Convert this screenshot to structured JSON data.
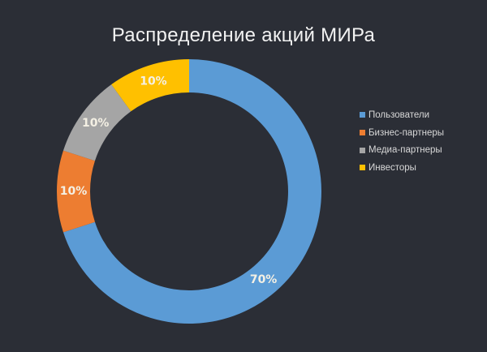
{
  "chart_data": {
    "type": "pie",
    "variant": "donut",
    "title": "Распределение акций МИРа",
    "categories": [
      "Пользователи",
      "Бизнес-партнеры",
      "Медиа-партнеры",
      "Инвесторы"
    ],
    "values": [
      70,
      10,
      10,
      10
    ],
    "labels": [
      "70%",
      "10%",
      "10%",
      "10%"
    ],
    "colors": [
      "#5b9bd5",
      "#ed7d31",
      "#a5a5a5",
      "#ffc000"
    ],
    "start_angle": "12 o'clock",
    "direction": "clockwise",
    "legend_position": "right"
  },
  "title": "Распределение акций МИРа",
  "legend": [
    {
      "label": "Пользователи",
      "color": "#5b9bd5"
    },
    {
      "label": "Бизнес-партнеры",
      "color": "#ed7d31"
    },
    {
      "label": "Медиа-партнеры",
      "color": "#a5a5a5"
    },
    {
      "label": "Инвесторы",
      "color": "#ffc000"
    }
  ]
}
